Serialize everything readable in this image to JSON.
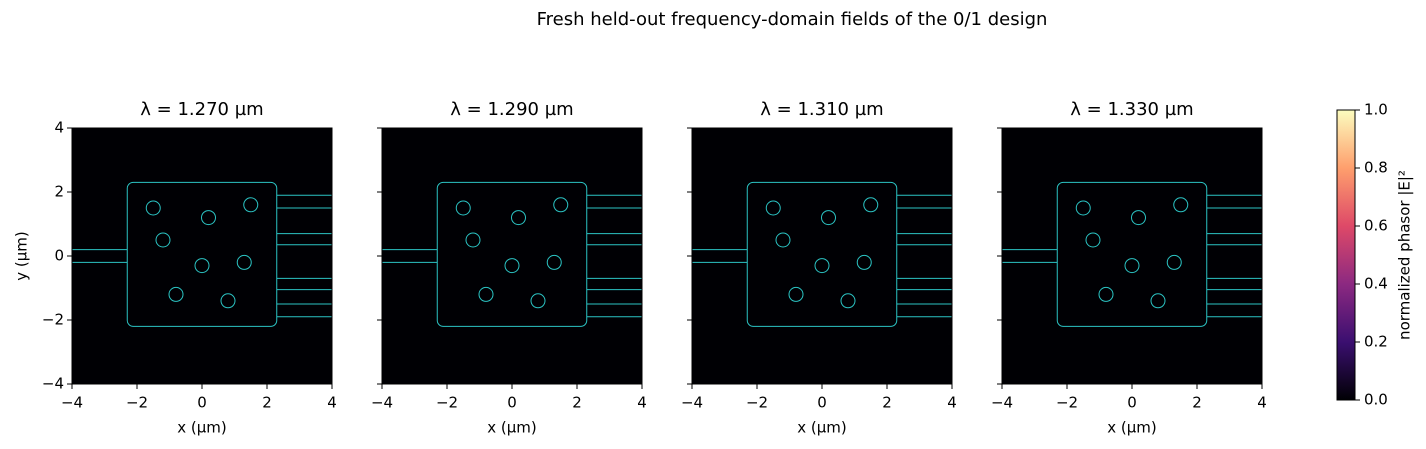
{
  "figure": {
    "title": "Fresh held-out frequency-domain fields of the 0/1 design",
    "colorbar": {
      "label": "normalized phasor |E|²",
      "colormap": "magma",
      "lim": [
        0,
        1
      ],
      "ticks": [
        {
          "value": 0,
          "label": "0.0"
        },
        {
          "value": 0.2,
          "label": "0.2"
        },
        {
          "value": 0.4,
          "label": "0.4"
        },
        {
          "value": 0.6,
          "label": "0.6"
        },
        {
          "value": 0.8,
          "label": "0.8"
        },
        {
          "value": 1,
          "label": "1.0"
        }
      ]
    }
  },
  "chart_data": [
    {
      "type": "heatmap",
      "title": "λ = 1.270 µm",
      "xlabel": "x (µm)",
      "ylabel": "y (µm)",
      "xlim": [
        -4,
        4
      ],
      "ylim": [
        -4,
        4
      ],
      "xticks": [
        {
          "value": -4,
          "label": "−4"
        },
        {
          "value": -2,
          "label": "−2"
        },
        0,
        2,
        4
      ],
      "yticks": [
        {
          "value": -4,
          "label": "−4"
        },
        {
          "value": -2,
          "label": "−2"
        },
        0,
        2,
        4
      ]
    },
    {
      "type": "heatmap",
      "title": "λ = 1.290 µm",
      "xlabel": "x (µm)",
      "xlim": [
        -4,
        4
      ],
      "ylim": [
        -4,
        4
      ],
      "xticks": [
        {
          "value": -4,
          "label": "−4"
        },
        {
          "value": -2,
          "label": "−2"
        },
        0,
        2,
        4
      ]
    },
    {
      "type": "heatmap",
      "title": "λ = 1.310 µm",
      "xlabel": "x (µm)",
      "xlim": [
        -4,
        4
      ],
      "ylim": [
        -4,
        4
      ],
      "xticks": [
        {
          "value": -4,
          "label": "−4"
        },
        {
          "value": -2,
          "label": "−2"
        },
        0,
        2,
        4
      ]
    },
    {
      "type": "heatmap",
      "title": "λ = 1.330 µm",
      "xlabel": "x (µm)",
      "xlim": [
        -4,
        4
      ],
      "ylim": [
        -4,
        4
      ],
      "xticks": [
        {
          "value": -4,
          "label": "−4"
        },
        {
          "value": -2,
          "label": "−2"
        },
        0,
        2,
        4
      ]
    }
  ]
}
